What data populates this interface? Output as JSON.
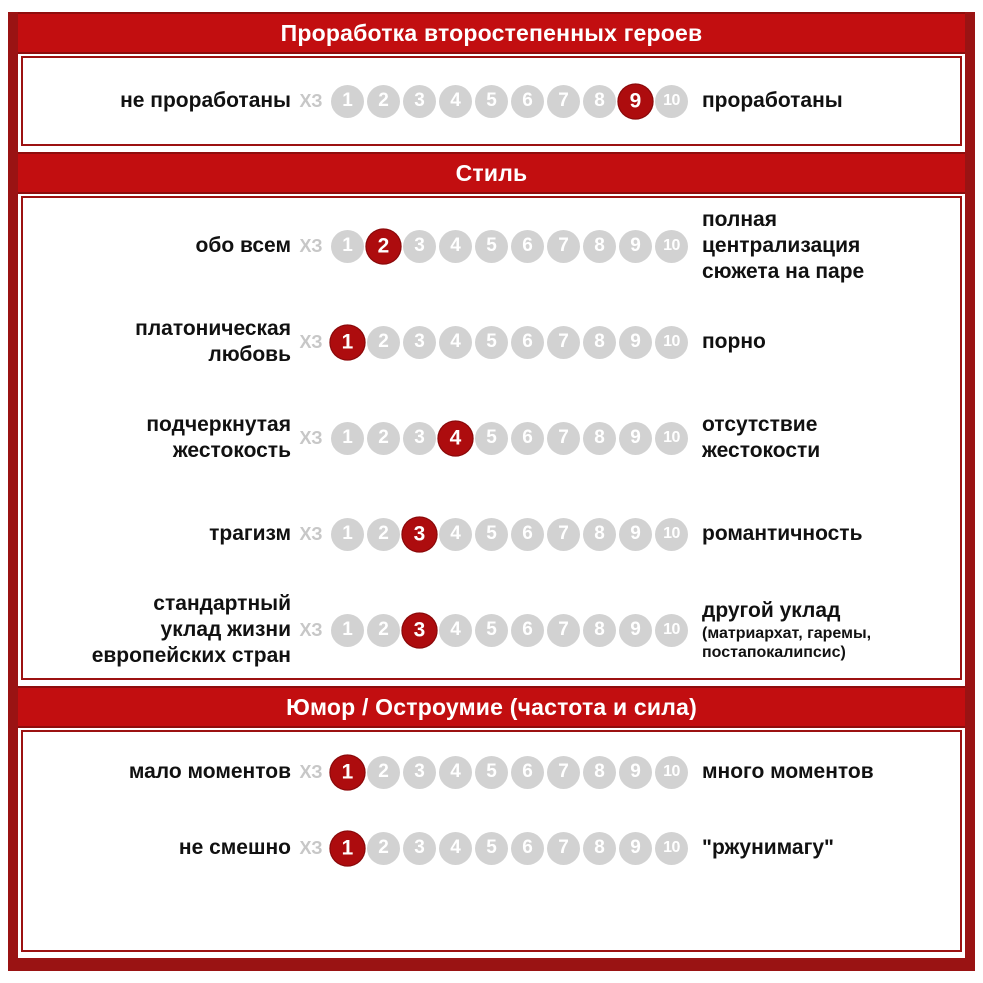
{
  "colors": {
    "frame": "#9a1313",
    "header_bar": "#c20e10",
    "header_edge": "#8e0d0d",
    "header_text": "#ffffff",
    "panel_border": "#9c1111",
    "selected_circle": "#ad0c0e",
    "circle": "#d2d2d2",
    "circle_text": "#ffffff",
    "unknown_text": "#c7c7c7",
    "label_text": "#111111"
  },
  "scale": {
    "unknown_label": "ХЗ",
    "min": 1,
    "max": 10
  },
  "sections": [
    {
      "title": "Проработка второстепенных героев",
      "rows": [
        {
          "left": "не проработаны",
          "right": "проработаны",
          "value": 9
        }
      ]
    },
    {
      "title": "Стиль",
      "rows": [
        {
          "left": "обо всем",
          "right": "полная\nцентрализация\nсюжета на паре",
          "value": 2
        },
        {
          "left": "платоническая\nлюбовь",
          "right": "порно",
          "value": 1
        },
        {
          "left": "подчеркнутая\nжестокость",
          "right": "отсутствие\nжестокости",
          "value": 4
        },
        {
          "left": "трагизм",
          "right": "романтичность",
          "value": 3
        },
        {
          "left": "стандартный\nуклад жизни\nевропейских стран",
          "right": "другой уклад",
          "right_note": "(матриархат, гаремы,\nпостапокалипсис)",
          "value": 3
        }
      ]
    },
    {
      "title": "Юмор / Остроумие (частота и сила)",
      "rows": [
        {
          "left": "мало моментов",
          "right": "много моментов",
          "value": 1
        },
        {
          "left": "не смешно",
          "right": "\"ржунимагу\"",
          "value": 1
        }
      ]
    }
  ],
  "chart_data": {
    "type": "table",
    "title": "Рейтинговые шкалы (оценка от 1 до 10, ХЗ = не знаю)",
    "columns": [
      "section",
      "left_anchor",
      "right_anchor",
      "rating"
    ],
    "rows": [
      [
        "Проработка второстепенных героев",
        "не проработаны",
        "проработаны",
        9
      ],
      [
        "Стиль",
        "обо всем",
        "полная централизация сюжета на паре",
        2
      ],
      [
        "Стиль",
        "платоническая любовь",
        "порно",
        1
      ],
      [
        "Стиль",
        "подчеркнутая жестокость",
        "отсутствие жестокости",
        4
      ],
      [
        "Стиль",
        "трагизм",
        "романтичность",
        3
      ],
      [
        "Стиль",
        "стандартный уклад жизни европейских стран",
        "другой уклад (матриархат, гаремы, постапокалипсис)",
        3
      ],
      [
        "Юмор / Остроумие (частота и сила)",
        "мало моментов",
        "много моментов",
        1
      ],
      [
        "Юмор / Остроумие (частота и сила)",
        "не смешно",
        "\"ржунимагу\"",
        1
      ]
    ],
    "scale_range": [
      1,
      10
    ],
    "unknown_option": "ХЗ"
  }
}
